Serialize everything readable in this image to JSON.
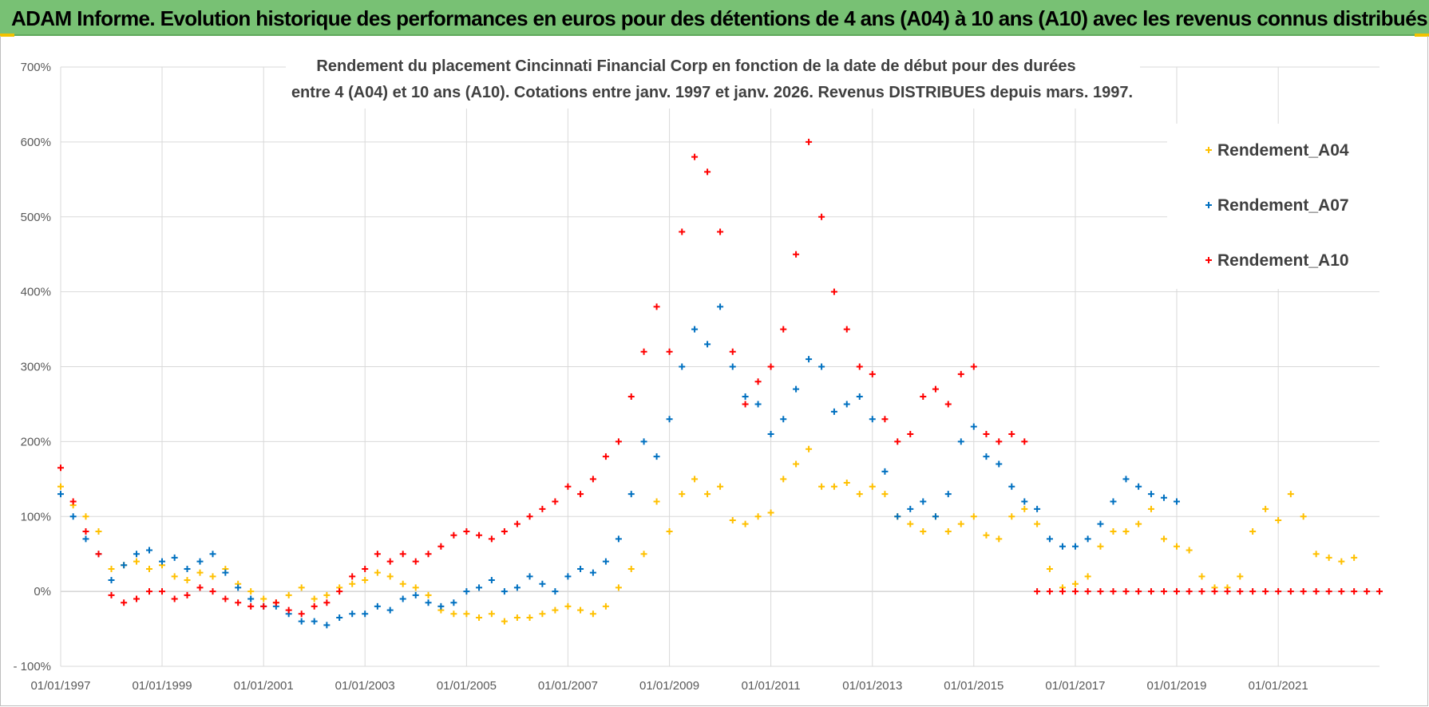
{
  "banner": {
    "title": "ADAM Informe. Evolution historique des performances en euros pour des détentions de 4 ans (A04) à 10 ans (A10) avec les revenus connus distribués",
    "color": "#78c174"
  },
  "chart_data": {
    "type": "scatter",
    "title_line1": "Rendement du placement Cincinnati Financial Corp en fonction de la date de début pour des durées",
    "title_line2": "entre 4 (A04) et 10 ans (A10).  Cotations entre janv. 1997 et janv. 2026. Revenus DISTRIBUES depuis mars. 1997.",
    "xlabel": "",
    "ylabel": "",
    "x_range": [
      "1997-01-01",
      "2022-12-31"
    ],
    "x_ticks": [
      "01/01/1997",
      "01/01/1999",
      "01/01/2001",
      "01/01/2003",
      "01/01/2005",
      "01/01/2007",
      "01/01/2009",
      "01/01/2011",
      "01/01/2013",
      "01/01/2015",
      "01/01/2017",
      "01/01/2019",
      "01/01/2021"
    ],
    "y_range": [
      -100,
      700
    ],
    "y_ticks": [
      -100,
      0,
      100,
      200,
      300,
      400,
      500,
      600,
      700
    ],
    "y_tick_labels": [
      "- 100%",
      "0%",
      "100%",
      "200%",
      "300%",
      "400%",
      "500%",
      "600%",
      "700%"
    ],
    "y_unit": "%",
    "grid": true,
    "legend_position": "top-right",
    "marker": "+",
    "series": [
      {
        "name": "Rendement_A04",
        "color": "#ffc000",
        "x": [
          "1997-01-01",
          "1997-04-01",
          "1997-07-01",
          "1997-10-01",
          "1998-01-01",
          "1998-04-01",
          "1998-07-01",
          "1998-10-01",
          "1999-01-01",
          "1999-04-01",
          "1999-07-01",
          "1999-10-01",
          "2000-01-01",
          "2000-04-01",
          "2000-07-01",
          "2000-10-01",
          "2001-01-01",
          "2001-04-01",
          "2001-07-01",
          "2001-10-01",
          "2002-01-01",
          "2002-04-01",
          "2002-07-01",
          "2002-10-01",
          "2003-01-01",
          "2003-04-01",
          "2003-07-01",
          "2003-10-01",
          "2004-01-01",
          "2004-04-01",
          "2004-07-01",
          "2004-10-01",
          "2005-01-01",
          "2005-04-01",
          "2005-07-01",
          "2005-10-01",
          "2006-01-01",
          "2006-04-01",
          "2006-07-01",
          "2006-10-01",
          "2007-01-01",
          "2007-04-01",
          "2007-07-01",
          "2007-10-01",
          "2008-01-01",
          "2008-04-01",
          "2008-07-01",
          "2008-10-01",
          "2009-01-01",
          "2009-04-01",
          "2009-07-01",
          "2009-10-01",
          "2010-01-01",
          "2010-04-01",
          "2010-07-01",
          "2010-10-01",
          "2011-01-01",
          "2011-04-01",
          "2011-07-01",
          "2011-10-01",
          "2012-01-01",
          "2012-04-01",
          "2012-07-01",
          "2012-10-01",
          "2013-01-01",
          "2013-04-01",
          "2013-07-01",
          "2013-10-01",
          "2014-01-01",
          "2014-04-01",
          "2014-07-01",
          "2014-10-01",
          "2015-01-01",
          "2015-04-01",
          "2015-07-01",
          "2015-10-01",
          "2016-01-01",
          "2016-04-01",
          "2016-07-01",
          "2016-10-01",
          "2017-01-01",
          "2017-04-01",
          "2017-07-01",
          "2017-10-01",
          "2018-01-01",
          "2018-04-01",
          "2018-07-01",
          "2018-10-01",
          "2019-01-01",
          "2019-04-01",
          "2019-07-01",
          "2019-10-01",
          "2020-01-01",
          "2020-04-01",
          "2020-07-01",
          "2020-10-01",
          "2021-01-01",
          "2021-04-01",
          "2021-07-01",
          "2021-10-01",
          "2022-01-01",
          "2022-04-01",
          "2022-07-01"
        ],
        "values": [
          140,
          115,
          100,
          80,
          30,
          35,
          40,
          30,
          35,
          20,
          15,
          25,
          20,
          30,
          10,
          0,
          -10,
          -15,
          -5,
          5,
          -10,
          -5,
          5,
          10,
          15,
          25,
          20,
          10,
          5,
          -5,
          -25,
          -30,
          -30,
          -35,
          -30,
          -40,
          -35,
          -35,
          -30,
          -25,
          -20,
          -25,
          -30,
          -20,
          5,
          30,
          50,
          120,
          80,
          130,
          150,
          130,
          140,
          95,
          90,
          100,
          105,
          150,
          170,
          190,
          140,
          140,
          145,
          130,
          140,
          130,
          100,
          90,
          80,
          100,
          80,
          90,
          100,
          75,
          70,
          100,
          110,
          90,
          30,
          5,
          10,
          20,
          60,
          80,
          80,
          90,
          110,
          70,
          60,
          55,
          20,
          5,
          5,
          20,
          80,
          110,
          95,
          130,
          100,
          50,
          45,
          40,
          45
        ]
      },
      {
        "name": "Rendement_A07",
        "color": "#0070c0",
        "x": [
          "1997-01-01",
          "1997-04-01",
          "1997-07-01",
          "1997-10-01",
          "1998-01-01",
          "1998-04-01",
          "1998-07-01",
          "1998-10-01",
          "1999-01-01",
          "1999-04-01",
          "1999-07-01",
          "1999-10-01",
          "2000-01-01",
          "2000-04-01",
          "2000-07-01",
          "2000-10-01",
          "2001-01-01",
          "2001-04-01",
          "2001-07-01",
          "2001-10-01",
          "2002-01-01",
          "2002-04-01",
          "2002-07-01",
          "2002-10-01",
          "2003-01-01",
          "2003-04-01",
          "2003-07-01",
          "2003-10-01",
          "2004-01-01",
          "2004-04-01",
          "2004-07-01",
          "2004-10-01",
          "2005-01-01",
          "2005-04-01",
          "2005-07-01",
          "2005-10-01",
          "2006-01-01",
          "2006-04-01",
          "2006-07-01",
          "2006-10-01",
          "2007-01-01",
          "2007-04-01",
          "2007-07-01",
          "2007-10-01",
          "2008-01-01",
          "2008-04-01",
          "2008-07-01",
          "2008-10-01",
          "2009-01-01",
          "2009-04-01",
          "2009-07-01",
          "2009-10-01",
          "2010-01-01",
          "2010-04-01",
          "2010-07-01",
          "2010-10-01",
          "2011-01-01",
          "2011-04-01",
          "2011-07-01",
          "2011-10-01",
          "2012-01-01",
          "2012-04-01",
          "2012-07-01",
          "2012-10-01",
          "2013-01-01",
          "2013-04-01",
          "2013-07-01",
          "2013-10-01",
          "2014-01-01",
          "2014-04-01",
          "2014-07-01",
          "2014-10-01",
          "2015-01-01",
          "2015-04-01",
          "2015-07-01",
          "2015-10-01",
          "2016-01-01",
          "2016-04-01",
          "2016-07-01",
          "2016-10-01",
          "2017-01-01",
          "2017-04-01",
          "2017-07-01",
          "2017-10-01",
          "2018-01-01",
          "2018-04-01",
          "2018-07-01",
          "2018-10-01",
          "2019-01-01"
        ],
        "values": [
          130,
          100,
          70,
          50,
          15,
          35,
          50,
          55,
          40,
          45,
          30,
          40,
          50,
          25,
          5,
          -10,
          -20,
          -20,
          -30,
          -40,
          -40,
          -45,
          -35,
          -30,
          -30,
          -20,
          -25,
          -10,
          -5,
          -15,
          -20,
          -15,
          0,
          5,
          15,
          0,
          5,
          20,
          10,
          0,
          20,
          30,
          25,
          40,
          70,
          130,
          200,
          180,
          230,
          300,
          350,
          330,
          380,
          300,
          260,
          250,
          210,
          230,
          270,
          310,
          300,
          240,
          250,
          260,
          230,
          160,
          100,
          110,
          120,
          100,
          130,
          200,
          220,
          180,
          170,
          140,
          120,
          110,
          70,
          60,
          60,
          70,
          90,
          120,
          150,
          140,
          130,
          125,
          120
        ]
      },
      {
        "name": "Rendement_A10",
        "color": "#ff0000",
        "x": [
          "1997-01-01",
          "1997-04-01",
          "1997-07-01",
          "1997-10-01",
          "1998-01-01",
          "1998-04-01",
          "1998-07-01",
          "1998-10-01",
          "1999-01-01",
          "1999-04-01",
          "1999-07-01",
          "1999-10-01",
          "2000-01-01",
          "2000-04-01",
          "2000-07-01",
          "2000-10-01",
          "2001-01-01",
          "2001-04-01",
          "2001-07-01",
          "2001-10-01",
          "2002-01-01",
          "2002-04-01",
          "2002-07-01",
          "2002-10-01",
          "2003-01-01",
          "2003-04-01",
          "2003-07-01",
          "2003-10-01",
          "2004-01-01",
          "2004-04-01",
          "2004-07-01",
          "2004-10-01",
          "2005-01-01",
          "2005-04-01",
          "2005-07-01",
          "2005-10-01",
          "2006-01-01",
          "2006-04-01",
          "2006-07-01",
          "2006-10-01",
          "2007-01-01",
          "2007-04-01",
          "2007-07-01",
          "2007-10-01",
          "2008-01-01",
          "2008-04-01",
          "2008-07-01",
          "2008-10-01",
          "2009-01-01",
          "2009-04-01",
          "2009-07-01",
          "2009-10-01",
          "2010-01-01",
          "2010-04-01",
          "2010-07-01",
          "2010-10-01",
          "2011-01-01",
          "2011-04-01",
          "2011-07-01",
          "2011-10-01",
          "2012-01-01",
          "2012-04-01",
          "2012-07-01",
          "2012-10-01",
          "2013-01-01",
          "2013-04-01",
          "2013-07-01",
          "2013-10-01",
          "2014-01-01",
          "2014-04-01",
          "2014-07-01",
          "2014-10-01",
          "2015-01-01",
          "2015-04-01",
          "2015-07-01",
          "2015-10-01",
          "2016-01-01",
          "2016-04-01",
          "2016-07-01",
          "2016-10-01",
          "2017-01-01",
          "2017-04-01",
          "2017-07-01",
          "2017-10-01",
          "2018-01-01",
          "2018-04-01",
          "2018-07-01",
          "2018-10-01",
          "2019-01-01",
          "2019-04-01",
          "2019-07-01",
          "2019-10-01",
          "2020-01-01",
          "2020-04-01",
          "2020-07-01",
          "2020-10-01",
          "2021-01-01",
          "2021-04-01",
          "2021-07-01",
          "2021-10-01",
          "2022-01-01",
          "2022-04-01",
          "2022-07-01",
          "2022-10-01",
          "2022-12-31"
        ],
        "values": [
          165,
          120,
          80,
          50,
          -5,
          -15,
          -10,
          0,
          0,
          -10,
          -5,
          5,
          0,
          -10,
          -15,
          -20,
          -20,
          -15,
          -25,
          -30,
          -20,
          -15,
          0,
          20,
          30,
          50,
          40,
          50,
          40,
          50,
          60,
          75,
          80,
          75,
          70,
          80,
          90,
          100,
          110,
          120,
          140,
          130,
          150,
          180,
          200,
          260,
          320,
          380,
          320,
          480,
          580,
          560,
          480,
          320,
          250,
          280,
          300,
          350,
          450,
          600,
          500,
          400,
          350,
          300,
          290,
          230,
          200,
          210,
          260,
          270,
          250,
          290,
          300,
          210,
          200,
          210,
          200,
          0,
          0,
          0,
          0,
          0,
          0,
          0,
          0,
          0,
          0,
          0,
          0,
          0,
          0,
          0,
          0,
          0,
          0,
          0,
          0,
          0,
          0,
          0,
          0,
          0,
          0,
          0,
          0
        ]
      }
    ]
  }
}
